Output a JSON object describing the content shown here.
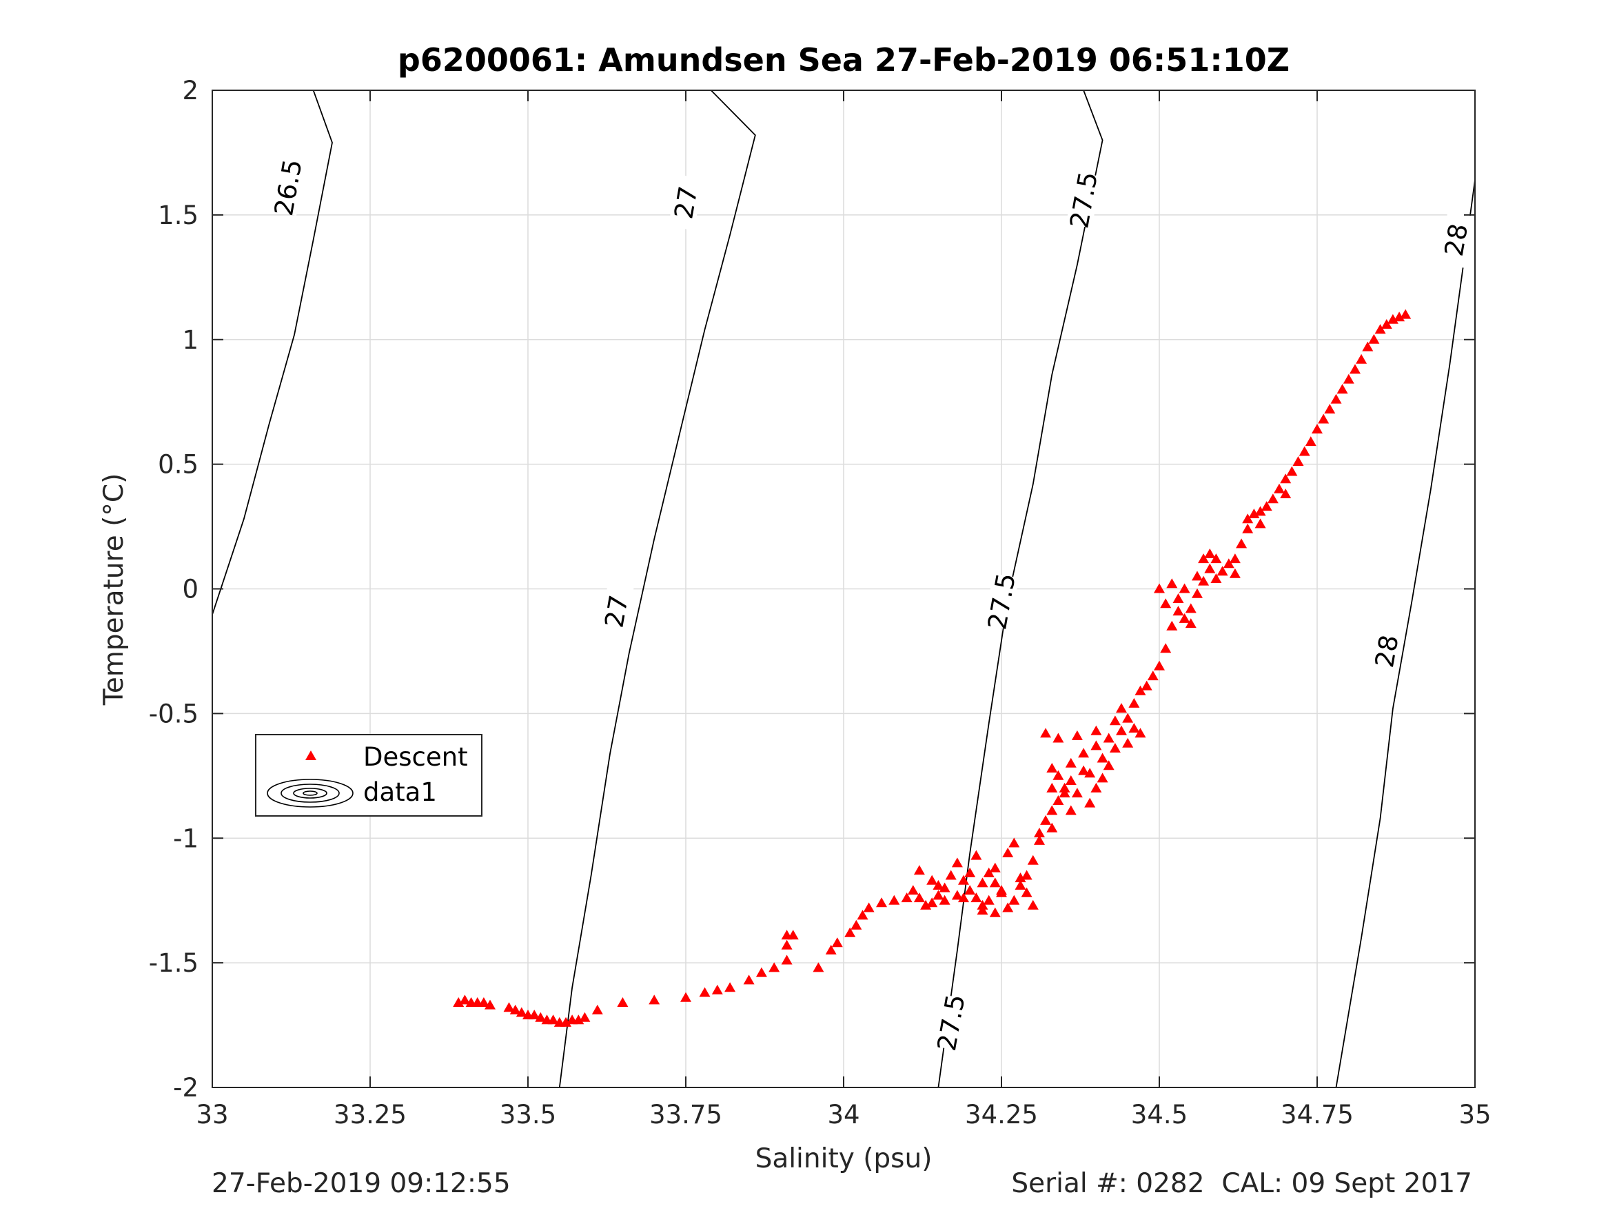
{
  "figure": {
    "footer_left": "27-Feb-2019 09:12:55",
    "footer_right": "Serial #: 0282  CAL: 09 Sept 2017"
  },
  "chart_data": {
    "type": "scatter",
    "title": "p6200061: Amundsen Sea 27-Feb-2019 06:51:10Z",
    "xlabel": "Salinity (psu)",
    "ylabel": "Temperature (°C)",
    "xlim": [
      33,
      35
    ],
    "ylim": [
      -2,
      2
    ],
    "xticks": [
      33,
      33.25,
      33.5,
      33.75,
      34,
      34.25,
      34.5,
      34.75,
      35
    ],
    "xtick_labels": [
      "33",
      "33.25",
      "33.5",
      "33.75",
      "34",
      "34.25",
      "34.5",
      "34.75",
      "35"
    ],
    "yticks": [
      -2,
      -1.5,
      -1,
      -0.5,
      0,
      0.5,
      1,
      1.5,
      2
    ],
    "ytick_labels": [
      "-2",
      "-1.5",
      "-1",
      "-0.5",
      "0",
      "0.5",
      "1",
      "1.5",
      "2"
    ],
    "grid": true,
    "legend": {
      "position": "middle-left",
      "entries": [
        "Descent",
        "data1"
      ]
    },
    "colors": {
      "descent": "#ff0000",
      "contour": "#000000",
      "grid": "#dcdcdc",
      "axis": "#262626"
    },
    "contours": [
      {
        "level": "26.5",
        "points": [
          [
            32.99,
            -0.18
          ],
          [
            33.05,
            0.28
          ],
          [
            33.09,
            0.66
          ],
          [
            33.13,
            1.02
          ],
          [
            33.16,
            1.4
          ],
          [
            33.19,
            1.79
          ],
          [
            33.16,
            2.0
          ]
        ],
        "labels": [
          [
            33.12,
            1.61,
            -80
          ]
        ]
      },
      {
        "level": "27",
        "points": [
          [
            33.55,
            -2.0
          ],
          [
            33.57,
            -1.6
          ],
          [
            33.6,
            -1.15
          ],
          [
            33.63,
            -0.66
          ],
          [
            33.66,
            -0.26
          ],
          [
            33.7,
            0.2
          ],
          [
            33.74,
            0.62
          ],
          [
            33.78,
            1.04
          ],
          [
            33.82,
            1.42
          ],
          [
            33.86,
            1.82
          ],
          [
            33.79,
            2.0
          ]
        ],
        "labels": [
          [
            33.64,
            -0.09,
            -80
          ],
          [
            33.75,
            1.55,
            -80
          ]
        ]
      },
      {
        "level": "27.5",
        "points": [
          [
            34.15,
            -2.0
          ],
          [
            34.18,
            -1.45
          ],
          [
            34.2,
            -1.06
          ],
          [
            34.23,
            -0.54
          ],
          [
            34.26,
            -0.04
          ],
          [
            34.3,
            0.42
          ],
          [
            34.33,
            0.86
          ],
          [
            34.37,
            1.3
          ],
          [
            34.41,
            1.8
          ],
          [
            34.38,
            2.0
          ]
        ],
        "labels": [
          [
            34.17,
            -1.74,
            -80
          ],
          [
            34.25,
            -0.05,
            -80
          ],
          [
            34.38,
            1.56,
            -80
          ]
        ]
      },
      {
        "level": "28",
        "points": [
          [
            34.78,
            -2.0
          ],
          [
            34.82,
            -1.4
          ],
          [
            34.85,
            -0.92
          ],
          [
            34.87,
            -0.48
          ],
          [
            34.9,
            -0.05
          ],
          [
            34.93,
            0.4
          ],
          [
            34.96,
            0.9
          ],
          [
            35.0,
            1.64
          ]
        ],
        "labels": [
          [
            34.86,
            -0.25,
            -80
          ],
          [
            34.97,
            1.4,
            -80
          ]
        ]
      }
    ],
    "series": [
      {
        "name": "Descent",
        "marker": "triangle",
        "points": [
          [
            33.39,
            -1.66
          ],
          [
            33.4,
            -1.65
          ],
          [
            33.41,
            -1.66
          ],
          [
            33.42,
            -1.66
          ],
          [
            33.43,
            -1.66
          ],
          [
            33.44,
            -1.67
          ],
          [
            33.47,
            -1.68
          ],
          [
            33.48,
            -1.69
          ],
          [
            33.49,
            -1.7
          ],
          [
            33.5,
            -1.71
          ],
          [
            33.51,
            -1.71
          ],
          [
            33.52,
            -1.72
          ],
          [
            33.53,
            -1.73
          ],
          [
            33.54,
            -1.73
          ],
          [
            33.55,
            -1.74
          ],
          [
            33.56,
            -1.74
          ],
          [
            33.57,
            -1.73
          ],
          [
            33.58,
            -1.73
          ],
          [
            33.59,
            -1.72
          ],
          [
            33.61,
            -1.69
          ],
          [
            33.65,
            -1.66
          ],
          [
            33.7,
            -1.65
          ],
          [
            33.75,
            -1.64
          ],
          [
            33.78,
            -1.62
          ],
          [
            33.8,
            -1.61
          ],
          [
            33.82,
            -1.6
          ],
          [
            33.85,
            -1.57
          ],
          [
            33.87,
            -1.54
          ],
          [
            33.89,
            -1.52
          ],
          [
            33.91,
            -1.49
          ],
          [
            33.91,
            -1.39
          ],
          [
            33.92,
            -1.39
          ],
          [
            33.91,
            -1.43
          ],
          [
            33.96,
            -1.52
          ],
          [
            33.98,
            -1.45
          ],
          [
            33.99,
            -1.42
          ],
          [
            34.01,
            -1.38
          ],
          [
            34.02,
            -1.35
          ],
          [
            34.03,
            -1.31
          ],
          [
            34.04,
            -1.28
          ],
          [
            34.06,
            -1.26
          ],
          [
            34.08,
            -1.25
          ],
          [
            34.1,
            -1.24
          ],
          [
            34.11,
            -1.21
          ],
          [
            34.12,
            -1.24
          ],
          [
            34.13,
            -1.27
          ],
          [
            34.14,
            -1.26
          ],
          [
            34.15,
            -1.23
          ],
          [
            34.16,
            -1.2
          ],
          [
            34.17,
            -1.15
          ],
          [
            34.18,
            -1.23
          ],
          [
            34.19,
            -1.24
          ],
          [
            34.2,
            -1.21
          ],
          [
            34.21,
            -1.24
          ],
          [
            34.22,
            -1.27
          ],
          [
            34.23,
            -1.25
          ],
          [
            34.24,
            -1.18
          ],
          [
            34.25,
            -1.22
          ],
          [
            34.26,
            -1.28
          ],
          [
            34.27,
            -1.25
          ],
          [
            34.28,
            -1.19
          ],
          [
            34.29,
            -1.15
          ],
          [
            34.3,
            -1.09
          ],
          [
            34.31,
            -1.01
          ],
          [
            34.32,
            -0.93
          ],
          [
            34.33,
            -0.89
          ],
          [
            34.34,
            -0.85
          ],
          [
            34.35,
            -0.8
          ],
          [
            34.36,
            -0.77
          ],
          [
            34.38,
            -0.73
          ],
          [
            34.37,
            -0.82
          ],
          [
            34.34,
            -0.75
          ],
          [
            34.33,
            -0.8
          ],
          [
            34.36,
            -0.89
          ],
          [
            34.39,
            -0.86
          ],
          [
            34.4,
            -0.8
          ],
          [
            34.41,
            -0.76
          ],
          [
            34.42,
            -0.71
          ],
          [
            34.43,
            -0.64
          ],
          [
            34.44,
            -0.57
          ],
          [
            34.45,
            -0.52
          ],
          [
            34.46,
            -0.46
          ],
          [
            34.47,
            -0.41
          ],
          [
            34.48,
            -0.39
          ],
          [
            34.49,
            -0.35
          ],
          [
            34.5,
            -0.31
          ],
          [
            34.51,
            -0.24
          ],
          [
            34.52,
            -0.15
          ],
          [
            34.51,
            -0.06
          ],
          [
            34.5,
            0.0
          ],
          [
            34.52,
            0.02
          ],
          [
            34.53,
            -0.04
          ],
          [
            34.54,
            -0.12
          ],
          [
            34.55,
            -0.08
          ],
          [
            34.56,
            -0.02
          ],
          [
            34.57,
            0.03
          ],
          [
            34.57,
            0.12
          ],
          [
            34.58,
            0.08
          ],
          [
            34.59,
            0.04
          ],
          [
            34.6,
            0.07
          ],
          [
            34.61,
            0.1
          ],
          [
            34.62,
            0.12
          ],
          [
            34.63,
            0.18
          ],
          [
            34.64,
            0.24
          ],
          [
            34.65,
            0.3
          ],
          [
            34.66,
            0.31
          ],
          [
            34.67,
            0.33
          ],
          [
            34.68,
            0.36
          ],
          [
            34.69,
            0.4
          ],
          [
            34.7,
            0.44
          ],
          [
            34.71,
            0.47
          ],
          [
            34.72,
            0.51
          ],
          [
            34.73,
            0.55
          ],
          [
            34.74,
            0.59
          ],
          [
            34.75,
            0.64
          ],
          [
            34.76,
            0.68
          ],
          [
            34.77,
            0.72
          ],
          [
            34.78,
            0.76
          ],
          [
            34.79,
            0.8
          ],
          [
            34.8,
            0.84
          ],
          [
            34.81,
            0.88
          ],
          [
            34.82,
            0.92
          ],
          [
            34.83,
            0.97
          ],
          [
            34.84,
            1.0
          ],
          [
            34.85,
            1.04
          ],
          [
            34.86,
            1.06
          ],
          [
            34.87,
            1.08
          ],
          [
            34.88,
            1.09
          ],
          [
            34.89,
            1.1
          ],
          [
            34.12,
            -1.13
          ],
          [
            34.14,
            -1.17
          ],
          [
            34.18,
            -1.1
          ],
          [
            34.2,
            -1.14
          ],
          [
            34.22,
            -1.18
          ],
          [
            34.24,
            -1.12
          ],
          [
            34.26,
            -1.06
          ],
          [
            34.27,
            -1.02
          ],
          [
            34.29,
            -1.22
          ],
          [
            34.3,
            -1.27
          ],
          [
            34.22,
            -1.29
          ],
          [
            34.24,
            -1.3
          ],
          [
            34.19,
            -1.17
          ],
          [
            34.16,
            -1.25
          ],
          [
            34.15,
            -1.19
          ],
          [
            34.21,
            -1.07
          ],
          [
            34.23,
            -1.14
          ],
          [
            34.25,
            -1.21
          ],
          [
            34.28,
            -1.16
          ],
          [
            34.31,
            -0.98
          ],
          [
            34.33,
            -0.96
          ],
          [
            34.35,
            -0.82
          ],
          [
            34.36,
            -0.7
          ],
          [
            34.38,
            -0.66
          ],
          [
            34.39,
            -0.74
          ],
          [
            34.4,
            -0.63
          ],
          [
            34.41,
            -0.68
          ],
          [
            34.43,
            -0.53
          ],
          [
            34.44,
            -0.48
          ],
          [
            34.46,
            -0.56
          ],
          [
            34.47,
            -0.58
          ],
          [
            34.45,
            -0.62
          ],
          [
            34.42,
            -0.6
          ],
          [
            34.4,
            -0.57
          ],
          [
            34.37,
            -0.59
          ],
          [
            34.32,
            -0.58
          ],
          [
            34.33,
            -0.72
          ],
          [
            34.34,
            -0.6
          ],
          [
            34.53,
            -0.09
          ],
          [
            34.55,
            -0.14
          ],
          [
            34.54,
            0.0
          ],
          [
            34.58,
            0.14
          ],
          [
            34.59,
            0.12
          ],
          [
            34.56,
            0.05
          ],
          [
            34.62,
            0.06
          ],
          [
            34.64,
            0.28
          ],
          [
            34.66,
            0.26
          ],
          [
            34.7,
            0.38
          ]
        ]
      }
    ]
  }
}
